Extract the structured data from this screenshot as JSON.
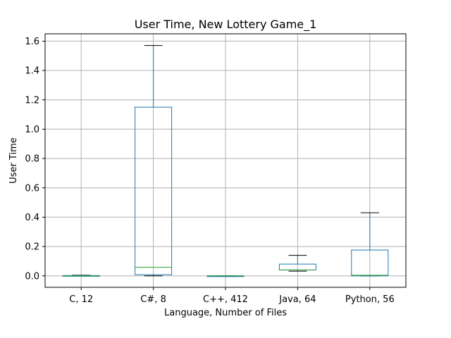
{
  "chart_data": {
    "type": "box",
    "title": "User Time, New Lottery Game_1",
    "xlabel": "Language, Number of Files",
    "ylabel": "User Time",
    "ylim": [
      -0.078,
      1.65
    ],
    "yticks": [
      "0.0",
      "0.2",
      "0.4",
      "0.6",
      "0.8",
      "1.0",
      "1.2",
      "1.4",
      "1.6"
    ],
    "grid": true,
    "categories": [
      "C, 12",
      "C#, 8",
      "C++, 412",
      "Java, 64",
      "Python, 56"
    ],
    "boxes": [
      {
        "whisker_low": 0.0,
        "q1": 0.0,
        "median": 0.0,
        "q3": 0.002,
        "whisker_high": 0.004
      },
      {
        "whisker_low": 0.0,
        "q1": 0.008,
        "median": 0.058,
        "q3": 1.15,
        "whisker_high": 1.57
      },
      {
        "whisker_low": 0.0,
        "q1": 0.0,
        "median": 0.0,
        "q3": 0.0,
        "whisker_high": 0.0
      },
      {
        "whisker_low": 0.032,
        "q1": 0.04,
        "median": 0.04,
        "q3": 0.08,
        "whisker_high": 0.14
      },
      {
        "whisker_low": 0.0,
        "q1": 0.0,
        "median": 0.004,
        "q3": 0.176,
        "whisker_high": 0.43
      }
    ],
    "colors": {
      "box": "#1f77b4",
      "median": "#2ca02c",
      "whisker_cap": "#000000",
      "grid": "#b0b0b0"
    }
  }
}
